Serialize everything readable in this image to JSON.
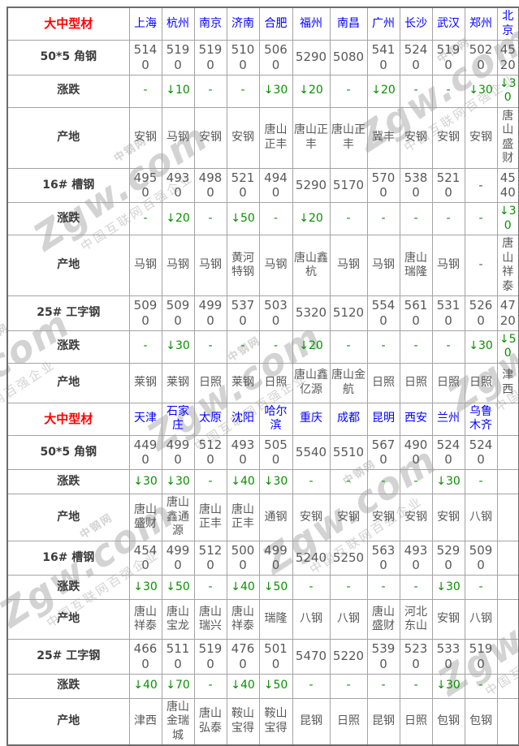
{
  "colors": {
    "header_red": "#ff0000",
    "city_blue": "#0000ff",
    "change_green": "#089000",
    "value_gray": "#595959",
    "label_dark": "#3b3b3b",
    "border_inner": "#a3a3a3",
    "border_outer": "#6d6d6d",
    "watermark_gray": "#c9c9c9"
  },
  "watermark": {
    "logo_text": "中钢网",
    "brand": "Zgw.com",
    "slogan": "中国互联网百强企业"
  },
  "row_labels": {
    "change": "涨跌",
    "origin": "产地"
  },
  "chart_data": {
    "type": "table",
    "title": "大中型材",
    "sections": [
      {
        "title": "大中型材",
        "cities": [
          "上海",
          "杭州",
          "南京",
          "济南",
          "合肥",
          "福州",
          "南昌",
          "广州",
          "长沙",
          "武汉",
          "郑州",
          "北京"
        ],
        "products": [
          {
            "name": "50*5 角钢",
            "prices": [
              "5140",
              "5190",
              "5190",
              "5100",
              "5060",
              "5290",
              "5080",
              "5410",
              "5240",
              "5190",
              "5020",
              "4520"
            ],
            "changes": [
              "-",
              "↓10",
              "-",
              "-",
              "↓30",
              "↓20",
              "-",
              "↓20",
              "-",
              "-",
              "↓30",
              "↓30"
            ],
            "origins": [
              "安钢",
              "马钢",
              "安钢",
              "安钢",
              "唐山正丰",
              "唐山正丰",
              "唐山正丰",
              "冀丰",
              "安钢",
              "安钢",
              "安钢",
              "唐山盛财"
            ]
          },
          {
            "name": "16# 槽钢",
            "prices": [
              "4950",
              "4930",
              "4980",
              "5210",
              "4940",
              "5290",
              "5170",
              "5700",
              "5380",
              "5210",
              "-",
              "4540"
            ],
            "changes": [
              "-",
              "↓20",
              "-",
              "↓50",
              "-",
              "↓20",
              "-",
              "-",
              "-",
              "-",
              "-",
              "↓30"
            ],
            "origins": [
              "马钢",
              "马钢",
              "马钢",
              "黄河特钢",
              "马钢",
              "唐山鑫杭",
              "马钢",
              "马钢",
              "唐山瑞隆",
              "马钢",
              "-",
              "唐山祥泰"
            ]
          },
          {
            "name": "25# 工字钢",
            "prices": [
              "5090",
              "5090",
              "4990",
              "5370",
              "5030",
              "5320",
              "5120",
              "5540",
              "5610",
              "5310",
              "5260",
              "4720"
            ],
            "changes": [
              "-",
              "↓30",
              "-",
              "-",
              "-",
              "↓20",
              "-",
              "-",
              "-",
              "-",
              "↓30",
              "↓50"
            ],
            "origins": [
              "莱钢",
              "莱钢",
              "日照",
              "莱钢",
              "日照",
              "唐山鑫亿源",
              "唐山金航",
              "日照",
              "日照",
              "日照",
              "日照",
              "津西"
            ]
          }
        ]
      },
      {
        "title": "大中型材",
        "cities": [
          "天津",
          "石家庄",
          "太原",
          "沈阳",
          "哈尔滨",
          "重庆",
          "成都",
          "昆明",
          "西安",
          "兰州",
          "乌鲁木齐",
          ""
        ],
        "products": [
          {
            "name": "50*5 角钢",
            "prices": [
              "4490",
              "4990",
              "5120",
              "4930",
              "5050",
              "5540",
              "5510",
              "5670",
              "4900",
              "5240",
              "5240",
              ""
            ],
            "changes": [
              "↓30",
              "↓30",
              "-",
              "↓40",
              "↓30",
              "-",
              "-",
              "-",
              "-",
              "↓30",
              "-",
              ""
            ],
            "origins": [
              "唐山盛财",
              "唐山鑫通源",
              "唐山正丰",
              "唐山正丰",
              "通钢",
              "安钢",
              "安钢",
              "安钢",
              "安钢",
              "安钢",
              "八钢",
              ""
            ]
          },
          {
            "name": "16# 槽钢",
            "prices": [
              "4540",
              "4990",
              "5120",
              "5000",
              "4990",
              "5240",
              "5250",
              "5630",
              "4930",
              "5290",
              "5090",
              ""
            ],
            "changes": [
              "↓30",
              "↓50",
              "-",
              "↓40",
              "↓50",
              "-",
              "-",
              "-",
              "-",
              "↓30",
              "-",
              ""
            ],
            "origins": [
              "唐山祥泰",
              "唐山宝龙",
              "唐山瑞兴",
              "唐山祥泰",
              "瑞隆",
              "八钢",
              "八钢",
              "唐山盛财",
              "河北东山",
              "安钢",
              "八钢",
              ""
            ]
          },
          {
            "name": "25# 工字钢",
            "prices": [
              "4660",
              "5110",
              "5190",
              "4760",
              "5010",
              "5470",
              "5220",
              "5390",
              "5230",
              "5330",
              "5190",
              ""
            ],
            "changes": [
              "↓40",
              "↓70",
              "-",
              "↓40",
              "↓50",
              "-",
              "-",
              "-",
              "-",
              "↓30",
              "-",
              ""
            ],
            "origins": [
              "津西",
              "唐山金瑞城",
              "唐山弘泰",
              "鞍山宝得",
              "鞍山宝得",
              "昆钢",
              "日照",
              "昆钢",
              "日照",
              "包钢",
              "包钢",
              ""
            ]
          }
        ]
      }
    ]
  }
}
